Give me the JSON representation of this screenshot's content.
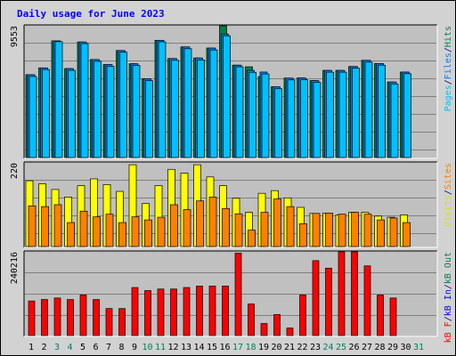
{
  "chart_data": {
    "type": "bar",
    "title": "Daily usage for June 2023",
    "days": [
      "1",
      "2",
      "3",
      "4",
      "5",
      "6",
      "7",
      "8",
      "9",
      "10",
      "11",
      "12",
      "13",
      "14",
      "15",
      "16",
      "17",
      "18",
      "19",
      "20",
      "21",
      "22",
      "23",
      "24",
      "25",
      "26",
      "27",
      "28",
      "29",
      "30",
      "31"
    ],
    "weekend_days": [
      "3",
      "4",
      "10",
      "11",
      "17",
      "18",
      "24",
      "25",
      "31"
    ],
    "panels": [
      {
        "name": "requests",
        "max_label": "9553",
        "max_value": 9553,
        "legend": [
          {
            "text": "Pages",
            "color": "#00c0ff"
          },
          {
            "text": "/",
            "color": "#000080"
          },
          {
            "text": "Files",
            "color": "#0080ff"
          },
          {
            "text": "/",
            "color": "#000080"
          },
          {
            "text": "Hits",
            "color": "#00805c"
          }
        ],
        "series": [
          {
            "name": "Hits",
            "color": "#008040",
            "values": [
              6010,
              6500,
              8460,
              6450,
              8380,
              7110,
              6740,
              7760,
              6800,
              5710,
              8500,
              7180,
              8020,
              7220,
              7940,
              9553,
              6700,
              6580,
              5870,
              5130,
              5760,
              5770,
              5580,
              6320,
              6320,
              6600,
              7050,
              6820,
              5480,
              6200,
              0
            ]
          },
          {
            "name": "Files",
            "color": "#0080ff",
            "values": [
              6010,
              6500,
              8460,
              6450,
              8380,
              7110,
              6740,
              7760,
              6800,
              5710,
              8500,
              7180,
              8020,
              7220,
              7940,
              8960,
              6700,
              6320,
              6200,
              5130,
              5760,
              5770,
              5580,
              6320,
              6320,
              6600,
              7050,
              6820,
              5480,
              6200,
              0
            ]
          },
          {
            "name": "Pages",
            "color": "#00c0ff",
            "values": [
              5880,
              6380,
              8400,
              6320,
              8260,
              6980,
              6620,
              7640,
              6680,
              5580,
              8390,
              7050,
              7890,
              7080,
              7800,
              8830,
              6580,
              6180,
              6060,
              4990,
              5630,
              5640,
              5450,
              6190,
              6190,
              6480,
              6920,
              6700,
              5340,
              6080,
              0
            ]
          }
        ]
      },
      {
        "name": "visits",
        "max_label": "220",
        "max_value": 220,
        "legend": [
          {
            "text": "Visits",
            "color": "#e0e000"
          },
          {
            "text": "/",
            "color": "#000080"
          },
          {
            "text": "Sites",
            "color": "#ff8000"
          }
        ],
        "series": [
          {
            "name": "Visits",
            "color": "#ffff00",
            "values": [
              173,
              165,
              150,
              130,
              160,
              178,
              163,
              145,
              215,
              113,
              160,
              203,
              193,
              215,
              183,
              160,
              127,
              90,
              140,
              147,
              128,
              103,
              87,
              88,
              83,
              90,
              90,
              80,
              77,
              83,
              0
            ]
          },
          {
            "name": "Sites",
            "color": "#ff8000",
            "values": [
              107,
              105,
              110,
              63,
              93,
              78,
              85,
              63,
              78,
              70,
              77,
              110,
              97,
              120,
              130,
              100,
              86,
              43,
              90,
              125,
              105,
              60,
              87,
              88,
              85,
              90,
              85,
              70,
              75,
              63,
              0
            ]
          }
        ]
      },
      {
        "name": "kbytes",
        "max_label": "240216",
        "max_value": 240216,
        "legend": [
          {
            "text": "kB F",
            "color": "#ff0000"
          },
          {
            "text": "/",
            "color": "#000080"
          },
          {
            "text": "kB In",
            "color": "#0000ff"
          },
          {
            "text": "/",
            "color": "#000080"
          },
          {
            "text": "kB Out",
            "color": "#00805c"
          }
        ],
        "series": [
          {
            "name": "kB F",
            "color": "#ff0000",
            "values": [
              99100,
              103400,
              107700,
              103400,
              116300,
              103400,
              77500,
              77500,
              137800,
              129200,
              133500,
              133500,
              137800,
              142100,
              142100,
              142100,
              236500,
              90500,
              34500,
              60300,
              21500,
              116300,
              215000,
              193500,
              240216,
              240216,
              200000,
              116300,
              107700,
              0,
              0
            ]
          }
        ]
      }
    ]
  }
}
